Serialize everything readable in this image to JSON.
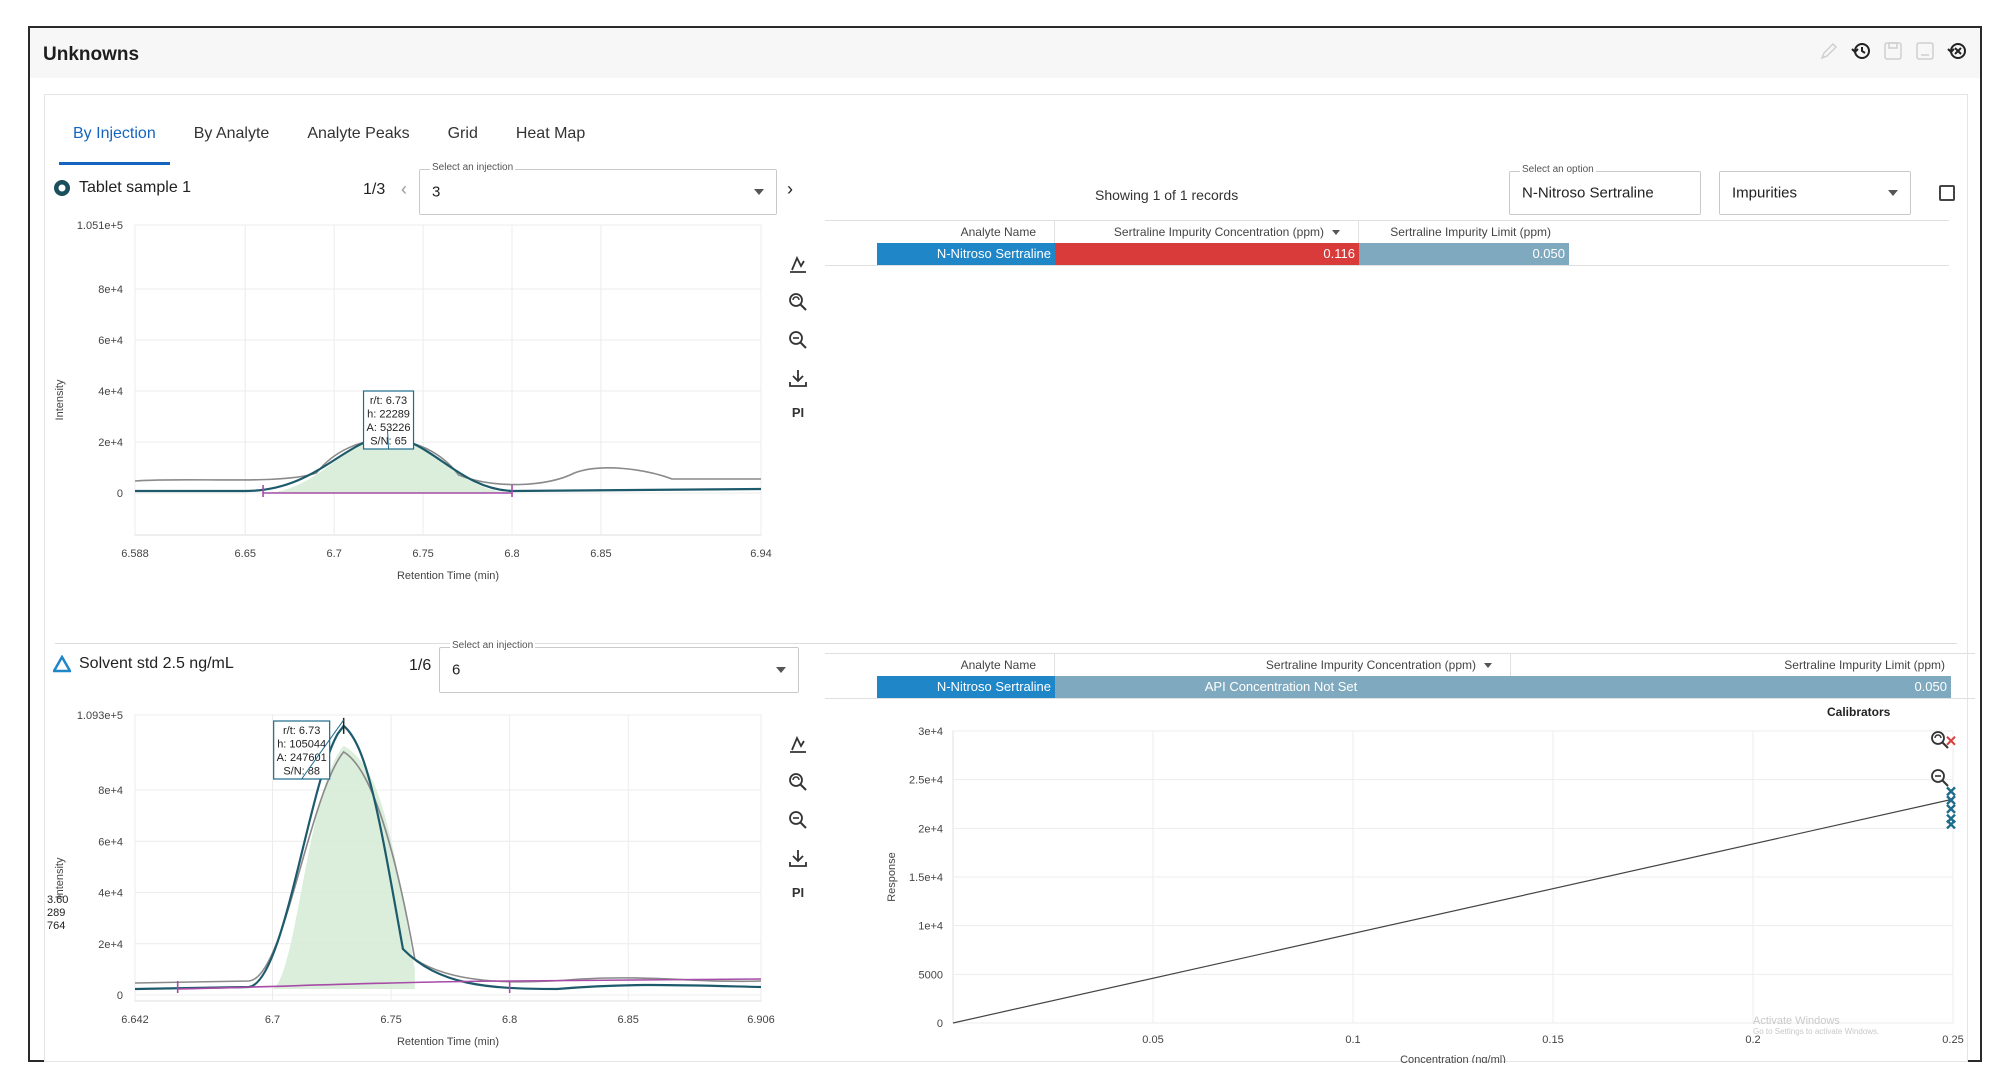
{
  "app": {
    "title": "Unknowns"
  },
  "toolbar": {
    "icons": [
      "pencil-icon",
      "history-icon",
      "save-icon",
      "save-as-icon",
      "close-history-icon"
    ]
  },
  "tabs": [
    {
      "label": "By Injection",
      "active": true
    },
    {
      "label": "By Analyte"
    },
    {
      "label": "Analyte Peaks"
    },
    {
      "label": "Grid"
    },
    {
      "label": "Heat Map"
    }
  ],
  "records_text": "Showing 1 of 1 records",
  "option_select": {
    "label": "Select an option",
    "value": "N-Nitroso Sertraline"
  },
  "category_select": {
    "value": "Impurities"
  },
  "top": {
    "sample_label": "Tablet sample 1",
    "counter": "1/3",
    "injection_select": {
      "label": "Select an injection",
      "value": "3"
    },
    "pi_label": "PI",
    "table": {
      "headers": [
        "Analyte Name",
        "Sertraline Impurity Concentration (ppm)",
        "Sertraline Impurity Limit (ppm)"
      ],
      "row": [
        "N-Nitroso Sertraline",
        "0.116",
        "0.050"
      ],
      "colors": {
        "name": "#1f86c8",
        "conc": "#d93a3a",
        "limit": "#7fa9bf"
      }
    },
    "chart": {
      "y_ticks": [
        "1.051e+5",
        "8e+4",
        "6e+4",
        "4e+4",
        "2e+4",
        "0"
      ],
      "x_ticks": [
        "6.588",
        "6.65",
        "6.7",
        "6.75",
        "6.8",
        "6.85",
        "6.94"
      ],
      "ylabel": "Intensity",
      "xlabel": "Retention Time (min)",
      "tooltip": [
        "r/t: 6.73",
        "h: 22289",
        "A: 53226",
        "S/N: 65"
      ]
    }
  },
  "bottom": {
    "sample_label": "Solvent std 2.5 ng/mL",
    "counter": "1/6",
    "injection_select": {
      "label": "Select an injection",
      "value": "6"
    },
    "pi_label": "PI",
    "table": {
      "headers": [
        "Analyte Name",
        "Sertraline Impurity Concentration (ppm)",
        "Sertraline Impurity Limit (ppm)"
      ],
      "row": [
        "N-Nitroso Sertraline",
        "API Concentration Not Set",
        "0.050"
      ],
      "colors": {
        "name": "#1f86c8",
        "conc": "#7fa9bf",
        "limit": "#7fa9bf"
      }
    },
    "chart": {
      "y_ticks": [
        "1.093e+5",
        "8e+4",
        "6e+4",
        "4e+4",
        "2e+4",
        "0"
      ],
      "x_ticks": [
        "6.642",
        "6.7",
        "6.75",
        "6.8",
        "6.85",
        "6.906"
      ],
      "ylabel": "Intensity",
      "xlabel": "Retention Time (min)",
      "tooltip": [
        "r/t: 6.73",
        "h: 105044",
        "A: 247601",
        "S/N: 88"
      ],
      "clipped_labels": [
        "3.60",
        "289",
        "764"
      ]
    },
    "calibration": {
      "title": "Calibrators",
      "y_ticks": [
        "3e+4",
        "2.5e+4",
        "2e+4",
        "1.5e+4",
        "1e+4",
        "5000",
        "0"
      ],
      "x_ticks": [
        "0.05",
        "0.1",
        "0.15",
        "0.2",
        "0.25"
      ],
      "ylabel": "Response",
      "xlabel": "Concentration (ng/ml)"
    },
    "watermark": {
      "line1": "Activate Windows",
      "line2": "Go to Settings to activate Windows."
    }
  }
}
